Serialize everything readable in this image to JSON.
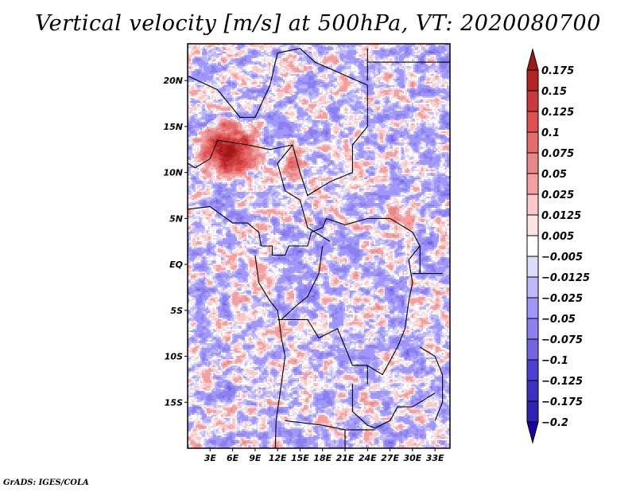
{
  "footer": "GrADS: IGES/COLA",
  "chart_data": {
    "type": "heatmap",
    "title": "Vertical velocity [m/s] at 500hPa, VT: 2020080700",
    "variable": "Vertical velocity",
    "units": "m/s",
    "level": "500hPa",
    "valid_time": "2020080700",
    "xlabel": "",
    "ylabel": "",
    "xlim": [
      0,
      35
    ],
    "ylim": [
      -20,
      24
    ],
    "x_ticks": [
      {
        "value": 3,
        "label": "3E"
      },
      {
        "value": 6,
        "label": "6E"
      },
      {
        "value": 9,
        "label": "9E"
      },
      {
        "value": 12,
        "label": "12E"
      },
      {
        "value": 15,
        "label": "15E"
      },
      {
        "value": 18,
        "label": "18E"
      },
      {
        "value": 21,
        "label": "21E"
      },
      {
        "value": 24,
        "label": "24E"
      },
      {
        "value": 27,
        "label": "27E"
      },
      {
        "value": 30,
        "label": "30E"
      },
      {
        "value": 33,
        "label": "33E"
      }
    ],
    "y_ticks": [
      {
        "value": 20,
        "label": "20N"
      },
      {
        "value": 15,
        "label": "15N"
      },
      {
        "value": 10,
        "label": "10N"
      },
      {
        "value": 5,
        "label": "5N"
      },
      {
        "value": 0,
        "label": "EQ"
      },
      {
        "value": -5,
        "label": "5S"
      },
      {
        "value": -10,
        "label": "10S"
      },
      {
        "value": -15,
        "label": "15S"
      }
    ],
    "grid": false,
    "legend": {
      "placement": "right",
      "type": "colorbar",
      "levels": [
        "0.175",
        "0.15",
        "0.125",
        "0.1",
        "0.075",
        "0.05",
        "0.025",
        "0.0125",
        "0.005",
        "-0.005",
        "-0.0125",
        "-0.025",
        "-0.05",
        "-0.075",
        "-0.1",
        "-0.125",
        "-0.175",
        "-0.2"
      ],
      "colors": [
        "#a01818",
        "#b42424",
        "#c83a3a",
        "#e05050",
        "#e46c6c",
        "#e48888",
        "#f4a0a0",
        "#fcc8c8",
        "#fde4e4",
        "#ffffff",
        "#dcdcfc",
        "#c0b8fc",
        "#a096fc",
        "#8c80f0",
        "#7464e0",
        "#4c40d0",
        "#3c30c0",
        "#2c24b0",
        "#2000a0"
      ]
    },
    "notable_features": [
      {
        "description": "strong upward motion maximum (dark red)",
        "lon_range": [
          2,
          9
        ],
        "lat_range": [
          10,
          15
        ]
      },
      {
        "description": "moderate upward motion",
        "lon_range": [
          13,
          15
        ],
        "lat_range": [
          10,
          13
        ]
      },
      {
        "description": "localized maximum",
        "lon_range": [
          27,
          28
        ],
        "lat_range": [
          5,
          7
        ]
      }
    ]
  }
}
